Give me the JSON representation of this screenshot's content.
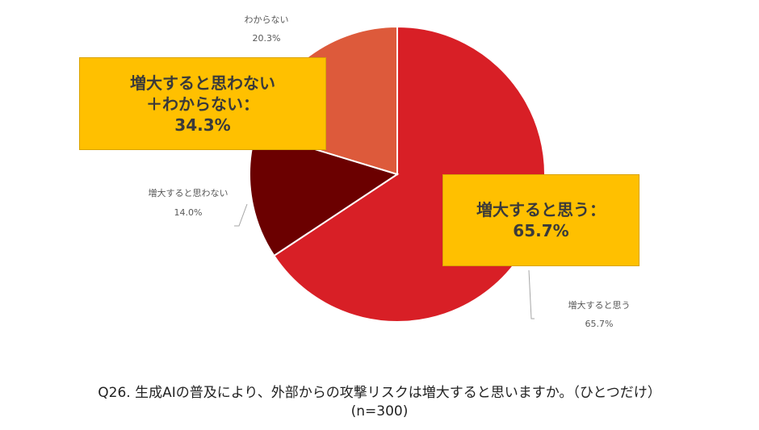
{
  "chart_data": {
    "type": "pie",
    "slices": [
      {
        "label": "増大すると思う",
        "pct_label": "65.7%",
        "value": 65.7,
        "color": "#d81f26"
      },
      {
        "label": "増大すると思わない",
        "pct_label": "14.0%",
        "value": 14.0,
        "color": "#6b0000"
      },
      {
        "label": "わからない",
        "pct_label": "20.3%",
        "value": 20.3,
        "color": "#dd5a3b"
      }
    ],
    "callouts": [
      {
        "lines": [
          "増大すると思わない",
          "＋わからない：",
          "34.3%"
        ]
      },
      {
        "lines": [
          "増大すると思う：",
          "65.7%"
        ]
      }
    ],
    "title": "Q26. 生成AIの普及により、外部からの攻撃リスクは増大すると思いますか。（ひとつだけ）",
    "subtitle": "(n=300)"
  }
}
